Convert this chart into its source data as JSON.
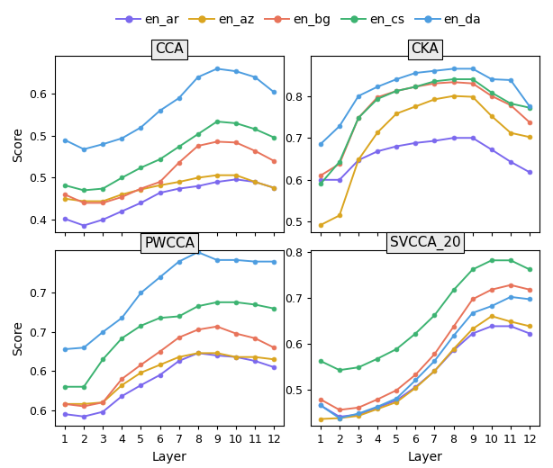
{
  "layers": [
    1,
    2,
    3,
    4,
    5,
    6,
    7,
    8,
    9,
    10,
    11,
    12
  ],
  "series": {
    "en_ar": {
      "color": "#7b68ee",
      "CCA": [
        0.401,
        0.393,
        0.4,
        0.41,
        0.42,
        0.432,
        0.437,
        0.44,
        0.445,
        0.448,
        0.445,
        0.438
      ],
      "CKA": [
        0.6,
        0.6,
        0.647,
        0.668,
        0.68,
        0.688,
        0.693,
        0.7,
        0.7,
        0.672,
        0.643,
        0.618
      ],
      "PWCCA": [
        0.545,
        0.542,
        0.548,
        0.568,
        0.582,
        0.595,
        0.613,
        0.623,
        0.62,
        0.618,
        0.613,
        0.605
      ],
      "SVCCA_20": [
        0.465,
        0.44,
        0.445,
        0.46,
        0.476,
        0.505,
        0.54,
        0.585,
        0.622,
        0.638,
        0.638,
        0.622
      ]
    },
    "en_az": {
      "color": "#daa520",
      "CCA": [
        0.425,
        0.422,
        0.422,
        0.43,
        0.436,
        0.441,
        0.445,
        0.45,
        0.453,
        0.453,
        0.445,
        0.438
      ],
      "CKA": [
        0.492,
        0.515,
        0.648,
        0.713,
        0.758,
        0.775,
        0.792,
        0.8,
        0.798,
        0.752,
        0.712,
        0.702
      ],
      "PWCCA": [
        0.558,
        0.558,
        0.56,
        0.582,
        0.598,
        0.608,
        0.618,
        0.623,
        0.623,
        0.618,
        0.618,
        0.615
      ],
      "SVCCA_20": [
        0.435,
        0.437,
        0.442,
        0.457,
        0.472,
        0.503,
        0.54,
        0.588,
        0.632,
        0.66,
        0.648,
        0.638
      ]
    },
    "en_bg": {
      "color": "#e8735a",
      "CCA": [
        0.43,
        0.42,
        0.42,
        0.427,
        0.437,
        0.445,
        0.468,
        0.488,
        0.493,
        0.492,
        0.482,
        0.47
      ],
      "CKA": [
        0.61,
        0.638,
        0.748,
        0.797,
        0.812,
        0.822,
        0.83,
        0.833,
        0.83,
        0.8,
        0.778,
        0.737
      ],
      "PWCCA": [
        0.558,
        0.555,
        0.56,
        0.59,
        0.608,
        0.625,
        0.643,
        0.653,
        0.657,
        0.648,
        0.642,
        0.63
      ],
      "SVCCA_20": [
        0.478,
        0.455,
        0.46,
        0.478,
        0.498,
        0.532,
        0.577,
        0.637,
        0.697,
        0.718,
        0.728,
        0.718
      ]
    },
    "en_cs": {
      "color": "#3cb371",
      "CCA": [
        0.441,
        0.435,
        0.437,
        0.45,
        0.462,
        0.472,
        0.487,
        0.502,
        0.517,
        0.515,
        0.508,
        0.498
      ],
      "CKA": [
        0.59,
        0.643,
        0.748,
        0.793,
        0.812,
        0.822,
        0.835,
        0.84,
        0.84,
        0.808,
        0.782,
        0.772
      ],
      "PWCCA": [
        0.58,
        0.58,
        0.615,
        0.642,
        0.658,
        0.668,
        0.67,
        0.683,
        0.688,
        0.688,
        0.685,
        0.68
      ],
      "SVCCA_20": [
        0.562,
        0.542,
        0.548,
        0.567,
        0.588,
        0.622,
        0.662,
        0.717,
        0.762,
        0.782,
        0.782,
        0.762
      ]
    },
    "en_da": {
      "color": "#4d9de0",
      "CCA": [
        0.495,
        0.484,
        0.49,
        0.497,
        0.51,
        0.53,
        0.545,
        0.57,
        0.58,
        0.577,
        0.57,
        0.552
      ],
      "CKA": [
        0.685,
        0.728,
        0.8,
        0.822,
        0.84,
        0.855,
        0.86,
        0.865,
        0.865,
        0.84,
        0.838,
        0.775
      ],
      "PWCCA": [
        0.628,
        0.63,
        0.65,
        0.668,
        0.7,
        0.72,
        0.74,
        0.752,
        0.742,
        0.742,
        0.74,
        0.74
      ],
      "SVCCA_20": [
        0.465,
        0.437,
        0.447,
        0.462,
        0.48,
        0.52,
        0.562,
        0.617,
        0.667,
        0.682,
        0.702,
        0.697
      ]
    }
  },
  "metrics": [
    "CCA",
    "CKA",
    "PWCCA",
    "SVCCA_20"
  ],
  "ylims": {
    "CCA": [
      0.385,
      0.595
    ],
    "CKA": [
      0.475,
      0.895
    ],
    "PWCCA": [
      0.53,
      0.755
    ],
    "SVCCA_20": [
      0.42,
      0.805
    ]
  },
  "yticks": {
    "CCA": [
      0.4,
      0.45,
      0.5,
      0.55
    ],
    "CKA": [
      0.5,
      0.6,
      0.7,
      0.8
    ],
    "PWCCA": [
      0.55,
      0.6,
      0.65,
      0.7
    ],
    "SVCCA_20": [
      0.5,
      0.6,
      0.7,
      0.8
    ]
  },
  "xlabel": "Layer",
  "ylabel": "Score",
  "background_color": "#ffffff",
  "panel_plot_bg": "#ffffff",
  "panel_header_bg": "#ebebeb",
  "panel_border": "#000000",
  "title_fontsize": 11,
  "label_fontsize": 10,
  "tick_fontsize": 9,
  "legend_fontsize": 10,
  "series_order": [
    "en_ar",
    "en_az",
    "en_bg",
    "en_cs",
    "en_da"
  ],
  "series_labels": [
    "en_ar",
    "en_az",
    "en_bg",
    "en_cs",
    "en_da"
  ],
  "metric_titles": {
    "CCA": "CCA",
    "CKA": "CKA",
    "PWCCA": "PWCCA",
    "SVCCA_20": "SVCCA_20"
  }
}
